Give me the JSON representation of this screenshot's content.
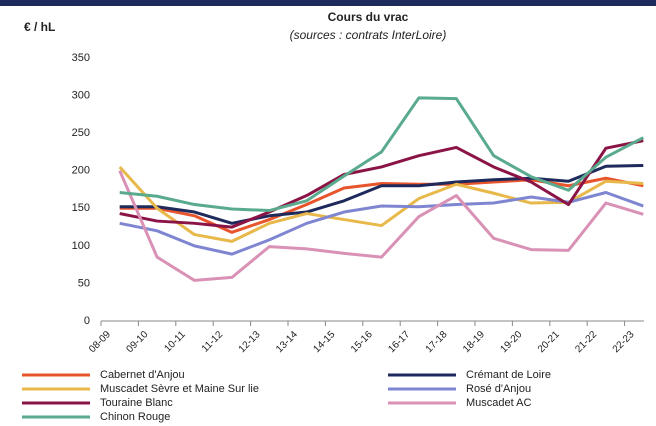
{
  "chart_data": {
    "type": "line",
    "title": "Cours du vrac",
    "subtitle": "(sources : contrats InterLoire)",
    "y_label": "€ / hL",
    "categories": [
      "08-09",
      "09-10",
      "10-11",
      "11-12",
      "12-13",
      "13-14",
      "14-15",
      "15-16",
      "16-17",
      "17-18",
      "18-19",
      "19-20",
      "20-21",
      "21-22",
      "22-23"
    ],
    "series": [
      {
        "name": "Cabernet d'Anjou",
        "color": "#e8542b",
        "values": [
          150,
          150,
          140,
          118,
          135,
          155,
          177,
          183,
          182,
          182,
          185,
          188,
          180,
          190,
          180
        ]
      },
      {
        "name": "Crémant de Loire",
        "color": "#1f2a5c",
        "values": [
          152,
          152,
          145,
          130,
          140,
          145,
          160,
          180,
          180,
          185,
          188,
          190,
          186,
          206,
          207
        ]
      },
      {
        "name": "Muscadet Sèvre et Maine Sur lie",
        "color": "#e8b84a",
        "values": [
          205,
          150,
          115,
          106,
          130,
          143,
          135,
          127,
          163,
          182,
          170,
          157,
          158,
          186,
          183
        ]
      },
      {
        "name": "Rosé d'Anjou",
        "color": "#7f86d1",
        "values": [
          130,
          120,
          100,
          89,
          108,
          130,
          145,
          153,
          152,
          155,
          157,
          165,
          158,
          171,
          153
        ]
      },
      {
        "name": "Touraine Blanc",
        "color": "#8b1446",
        "values": [
          143,
          133,
          130,
          125,
          145,
          167,
          195,
          205,
          220,
          231,
          205,
          185,
          155,
          230,
          240
        ]
      },
      {
        "name": "Muscadet AC",
        "color": "#d991b5",
        "values": [
          200,
          85,
          54,
          58,
          99,
          96,
          90,
          85,
          139,
          167,
          110,
          95,
          94,
          157,
          142
        ]
      },
      {
        "name": "Chinon Rouge",
        "color": "#5aaa8e",
        "values": [
          171,
          166,
          155,
          149,
          147,
          160,
          193,
          225,
          297,
          296,
          220,
          192,
          174,
          218,
          244
        ]
      }
    ],
    "ylim": [
      0,
      350
    ],
    "yticks": [
      0,
      50,
      100,
      150,
      200,
      250,
      300,
      350
    ],
    "grid": false
  }
}
